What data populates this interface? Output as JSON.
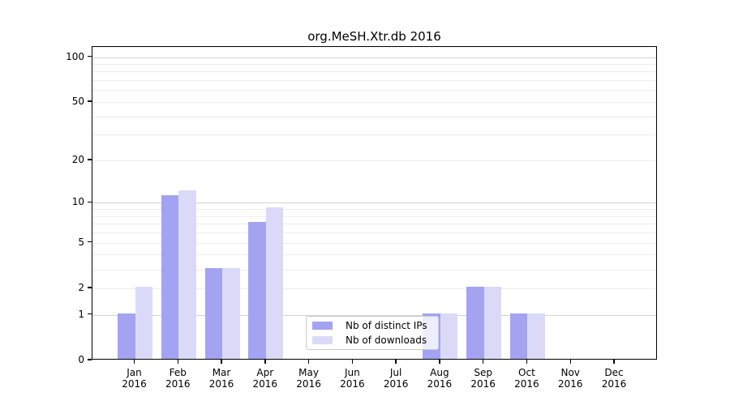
{
  "chart_data": {
    "type": "bar",
    "title": "org.MeSH.Xtr.db 2016",
    "x_axis": {
      "months": [
        "Jan",
        "Feb",
        "Mar",
        "Apr",
        "May",
        "Jun",
        "Jul",
        "Aug",
        "Sep",
        "Oct",
        "Nov",
        "Dec"
      ],
      "year": "2016"
    },
    "y_axis": {
      "scale": "log1p",
      "tick_values": [
        0,
        1,
        2,
        5,
        10,
        20,
        50,
        100
      ],
      "major_gridlines": [
        1,
        10,
        100
      ],
      "minor_gridlines": [
        2,
        3,
        4,
        5,
        6,
        7,
        8,
        9,
        20,
        30,
        40,
        50,
        60,
        70,
        80,
        90
      ],
      "ylim": [
        0,
        117
      ],
      "grid": "on"
    },
    "series": [
      {
        "name": "Nb of distinct IPs",
        "slug": "distinct-ips",
        "color": "#a3a3f2",
        "values": [
          1,
          11,
          3,
          7,
          0,
          0,
          0,
          1,
          2,
          1,
          0,
          0
        ]
      },
      {
        "name": "Nb of downloads",
        "slug": "downloads",
        "color": "#dadaf8",
        "values": [
          2,
          12,
          3,
          9,
          0,
          0,
          0,
          1,
          2,
          1,
          0,
          0
        ]
      }
    ],
    "legend": {
      "position": "lower-center"
    }
  }
}
